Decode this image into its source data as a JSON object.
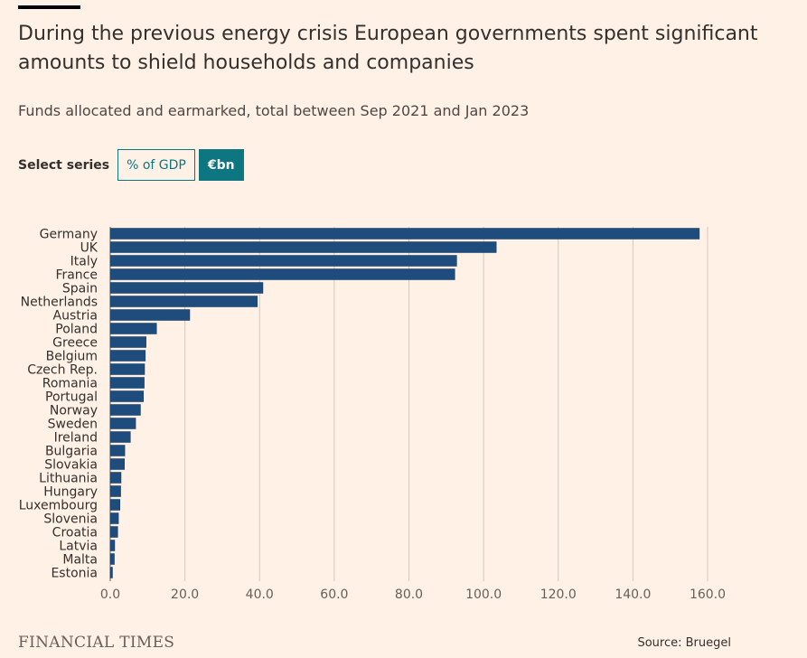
{
  "header": {
    "title": "During the previous energy crisis European governments spent significant amounts to shield households and companies",
    "subtitle": "Funds allocated and earmarked, total between Sep 2021 and Jan 2023"
  },
  "controls": {
    "select_label": "Select series",
    "options": [
      "% of GDP",
      "€bn"
    ],
    "selected": "€bn"
  },
  "colors": {
    "bar": "#1E4C7C",
    "accent": "#0D7680",
    "background": "#FFF1E5",
    "grid": "#D5C8BE"
  },
  "chart_data": {
    "type": "bar",
    "orientation": "horizontal",
    "categories": [
      "Germany",
      "UK",
      "Italy",
      "France",
      "Spain",
      "Netherlands",
      "Austria",
      "Poland",
      "Greece",
      "Belgium",
      "Czech Rep.",
      "Romania",
      "Portugal",
      "Norway",
      "Sweden",
      "Ireland",
      "Bulgaria",
      "Slovakia",
      "Lithuania",
      "Hungary",
      "Luxembourg",
      "Slovenia",
      "Croatia",
      "Latvia",
      "Malta",
      "Estonia"
    ],
    "values": [
      157.8,
      103.4,
      92.8,
      92.3,
      40.9,
      39.4,
      21.3,
      12.4,
      9.6,
      9.4,
      9.2,
      9.1,
      8.9,
      8.1,
      6.8,
      5.4,
      3.9,
      3.8,
      2.9,
      2.8,
      2.6,
      2.2,
      2.0,
      1.2,
      1.1,
      0.6
    ],
    "xlim": [
      0,
      160
    ],
    "xticks": [
      "0.0",
      "20.0",
      "40.0",
      "60.0",
      "80.0",
      "100.0",
      "120.0",
      "140.0",
      "160.0"
    ],
    "unit": "€bn",
    "grid": true
  },
  "footer": {
    "brand": "FINANCIAL TIMES",
    "source": "Source: Bruegel"
  }
}
